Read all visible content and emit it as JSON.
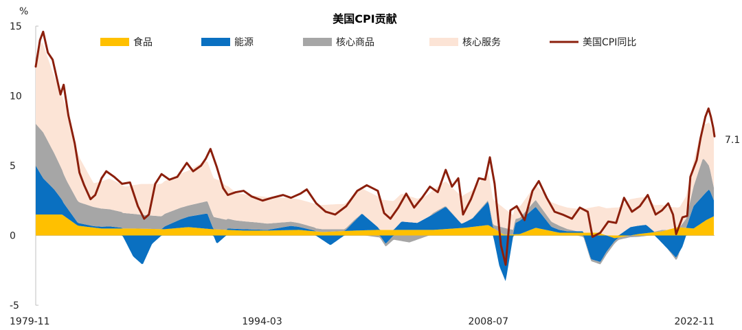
{
  "chart_data": {
    "type": "area",
    "title": "美国CPI贡献",
    "ylabel": "%",
    "ylim": [
      -5,
      15
    ],
    "yticks": [
      "15",
      "10",
      "5",
      "0",
      "-5"
    ],
    "x_tick_labels": [
      "1979-11",
      "1994-03",
      "2008-07",
      "2022-11"
    ],
    "x_range": [
      "1979-11",
      "2022-11"
    ],
    "end_label": "7.1",
    "series": [
      {
        "name": "食品",
        "color": "#ffc000",
        "points": [
          [
            1979.83,
            1.5
          ],
          [
            1980.5,
            1.5
          ],
          [
            1981.5,
            1.5
          ],
          [
            1982.5,
            0.7
          ],
          [
            1984,
            0.5
          ],
          [
            1986,
            0.5
          ],
          [
            1988,
            0.45
          ],
          [
            1989.5,
            0.6
          ],
          [
            1991,
            0.45
          ],
          [
            1993,
            0.35
          ],
          [
            1994.5,
            0.35
          ],
          [
            1996.5,
            0.4
          ],
          [
            1998,
            0.25
          ],
          [
            2000,
            0.35
          ],
          [
            2001.5,
            0.4
          ],
          [
            2003.5,
            0.4
          ],
          [
            2005,
            0.4
          ],
          [
            2007,
            0.55
          ],
          [
            2008.5,
            0.75
          ],
          [
            2009.5,
            0.05
          ],
          [
            2010.5,
            0.1
          ],
          [
            2011.5,
            0.55
          ],
          [
            2013,
            0.2
          ],
          [
            2015.5,
            0.2
          ],
          [
            2016.5,
            -0.2
          ],
          [
            2018,
            0.1
          ],
          [
            2019.5,
            0.3
          ],
          [
            2020.5,
            0.6
          ],
          [
            2021.5,
            0.5
          ],
          [
            2022.3,
            1.1
          ],
          [
            2022.83,
            1.4
          ]
        ]
      },
      {
        "name": "能源",
        "color": "#0a70c1",
        "points": [
          [
            1979.83,
            3.5
          ],
          [
            1980.3,
            2.6
          ],
          [
            1981,
            1.8
          ],
          [
            1981.6,
            0.9
          ],
          [
            1982.5,
            0.2
          ],
          [
            1983.5,
            0.1
          ],
          [
            1984.5,
            0.15
          ],
          [
            1985.3,
            0.05
          ],
          [
            1986,
            -1.5
          ],
          [
            1986.6,
            -2.1
          ],
          [
            1987.2,
            -0.6
          ],
          [
            1988,
            0.2
          ],
          [
            1989,
            0.6
          ],
          [
            1990.7,
            1.1
          ],
          [
            1991.3,
            -0.6
          ],
          [
            1992,
            0.1
          ],
          [
            1993,
            0.1
          ],
          [
            1994.5,
            0.05
          ],
          [
            1996,
            0.3
          ],
          [
            1997.5,
            0.05
          ],
          [
            1998.5,
            -0.7
          ],
          [
            1999.5,
            0.1
          ],
          [
            2000.5,
            1.2
          ],
          [
            2001.5,
            0.2
          ],
          [
            2002,
            -0.6
          ],
          [
            2003,
            0.6
          ],
          [
            2004,
            0.5
          ],
          [
            2005.8,
            1.6
          ],
          [
            2006.8,
            0.3
          ],
          [
            2007.5,
            0.6
          ],
          [
            2008.5,
            1.7
          ],
          [
            2009.2,
            -2.2
          ],
          [
            2009.6,
            -3.3
          ],
          [
            2010.2,
            0.8
          ],
          [
            2011.5,
            1.5
          ],
          [
            2012.5,
            0.3
          ],
          [
            2013.5,
            0.1
          ],
          [
            2014.5,
            0.1
          ],
          [
            2015,
            -1.7
          ],
          [
            2015.6,
            -1.9
          ],
          [
            2016.5,
            -0.2
          ],
          [
            2017.5,
            0.6
          ],
          [
            2018.5,
            0.6
          ],
          [
            2019.3,
            -0.3
          ],
          [
            2020.4,
            -1.6
          ],
          [
            2020.8,
            -0.8
          ],
          [
            2021.5,
            1.6
          ],
          [
            2022.5,
            2.1
          ],
          [
            2022.83,
            1.0
          ]
        ]
      },
      {
        "name": "核心商品",
        "color": "#a6a6a6",
        "points": [
          [
            1979.83,
            3.0
          ],
          [
            1980.3,
            3.3
          ],
          [
            1981,
            2.6
          ],
          [
            1981.8,
            1.9
          ],
          [
            1982.6,
            1.5
          ],
          [
            1984,
            1.3
          ],
          [
            1985.5,
            1.1
          ],
          [
            1986.5,
            1.0
          ],
          [
            1988,
            0.9
          ],
          [
            1989.5,
            0.8
          ],
          [
            1991,
            0.9
          ],
          [
            1992.5,
            0.6
          ],
          [
            1994,
            0.5
          ],
          [
            1996,
            0.3
          ],
          [
            1998,
            0.2
          ],
          [
            2000,
            0.1
          ],
          [
            2002,
            -0.2
          ],
          [
            2003.5,
            -0.5
          ],
          [
            2005,
            0.1
          ],
          [
            2007,
            0.0
          ],
          [
            2008.5,
            0.1
          ],
          [
            2009.5,
            0.5
          ],
          [
            2010.5,
            0.2
          ],
          [
            2011.5,
            0.5
          ],
          [
            2013,
            0.3
          ],
          [
            2014.5,
            -0.1
          ],
          [
            2016,
            -0.2
          ],
          [
            2018,
            -0.1
          ],
          [
            2019.5,
            0.1
          ],
          [
            2020.5,
            -0.2
          ],
          [
            2021.5,
            1.4
          ],
          [
            2022.1,
            2.7
          ],
          [
            2022.83,
            0.8
          ]
        ]
      },
      {
        "name": "核心服务",
        "color": "#fce4d6",
        "points": [
          [
            1979.83,
            4.2
          ],
          [
            1980.2,
            6.4
          ],
          [
            1981,
            5.5
          ],
          [
            1981.8,
            5.2
          ],
          [
            1982.6,
            3.2
          ],
          [
            1983.5,
            1.7
          ],
          [
            1984.5,
            2.2
          ],
          [
            1985.5,
            1.9
          ],
          [
            1986.5,
            2.2
          ],
          [
            1987.5,
            2.3
          ],
          [
            1988.5,
            2.4
          ],
          [
            1989.5,
            2.5
          ],
          [
            1990.5,
            2.9
          ],
          [
            1991.5,
            2.7
          ],
          [
            1992.5,
            2.0
          ],
          [
            1993.5,
            1.9
          ],
          [
            1994.5,
            1.9
          ],
          [
            1996,
            1.7
          ],
          [
            1997.5,
            1.7
          ],
          [
            1999,
            1.8
          ],
          [
            2000.5,
            1.8
          ],
          [
            2001.5,
            2.2
          ],
          [
            2003,
            2.0
          ],
          [
            2004.5,
            1.6
          ],
          [
            2006,
            1.8
          ],
          [
            2007,
            2.0
          ],
          [
            2008.5,
            2.0
          ],
          [
            2009.5,
            1.4
          ],
          [
            2010.5,
            0.8
          ],
          [
            2011.5,
            1.1
          ],
          [
            2012.5,
            1.4
          ],
          [
            2014,
            1.6
          ],
          [
            2015.5,
            1.9
          ],
          [
            2016.5,
            2.0
          ],
          [
            2017.5,
            2.0
          ],
          [
            2018.5,
            2.0
          ],
          [
            2019.5,
            1.8
          ],
          [
            2020.5,
            1.4
          ],
          [
            2021.5,
            1.8
          ],
          [
            2022.3,
            2.7
          ],
          [
            2022.83,
            3.9
          ]
        ]
      }
    ],
    "line_series": {
      "name": "美国CPI同比",
      "color": "#8b1f0c",
      "points": [
        [
          1979.83,
          12.1
        ],
        [
          1980.1,
          14.0
        ],
        [
          1980.3,
          14.6
        ],
        [
          1980.6,
          13.1
        ],
        [
          1980.9,
          12.6
        ],
        [
          1981.2,
          11.1
        ],
        [
          1981.4,
          10.1
        ],
        [
          1981.6,
          10.8
        ],
        [
          1981.9,
          8.6
        ],
        [
          1982.3,
          6.6
        ],
        [
          1982.6,
          4.5
        ],
        [
          1982.9,
          3.6
        ],
        [
          1983.3,
          2.6
        ],
        [
          1983.6,
          2.9
        ],
        [
          1984.0,
          4.1
        ],
        [
          1984.3,
          4.6
        ],
        [
          1984.8,
          4.2
        ],
        [
          1985.3,
          3.7
        ],
        [
          1985.8,
          3.8
        ],
        [
          1986.3,
          2.1
        ],
        [
          1986.7,
          1.2
        ],
        [
          1987.0,
          1.5
        ],
        [
          1987.4,
          3.7
        ],
        [
          1987.8,
          4.4
        ],
        [
          1988.3,
          4.0
        ],
        [
          1988.8,
          4.2
        ],
        [
          1989.4,
          5.2
        ],
        [
          1989.8,
          4.6
        ],
        [
          1990.3,
          5.0
        ],
        [
          1990.6,
          5.5
        ],
        [
          1990.9,
          6.2
        ],
        [
          1991.3,
          4.9
        ],
        [
          1991.7,
          3.4
        ],
        [
          1992.0,
          2.9
        ],
        [
          1992.5,
          3.1
        ],
        [
          1993.0,
          3.2
        ],
        [
          1993.5,
          2.8
        ],
        [
          1994.2,
          2.5
        ],
        [
          1994.8,
          2.7
        ],
        [
          1995.5,
          2.9
        ],
        [
          1996.0,
          2.7
        ],
        [
          1996.6,
          3.0
        ],
        [
          1997.0,
          3.3
        ],
        [
          1997.6,
          2.3
        ],
        [
          1998.2,
          1.7
        ],
        [
          1998.8,
          1.5
        ],
        [
          1999.5,
          2.1
        ],
        [
          2000.2,
          3.2
        ],
        [
          2000.8,
          3.6
        ],
        [
          2001.5,
          3.2
        ],
        [
          2001.9,
          1.6
        ],
        [
          2002.3,
          1.2
        ],
        [
          2002.8,
          2.0
        ],
        [
          2003.3,
          3.0
        ],
        [
          2003.8,
          2.0
        ],
        [
          2004.3,
          2.7
        ],
        [
          2004.8,
          3.5
        ],
        [
          2005.3,
          3.1
        ],
        [
          2005.8,
          4.7
        ],
        [
          2006.2,
          3.5
        ],
        [
          2006.6,
          4.1
        ],
        [
          2006.9,
          1.5
        ],
        [
          2007.4,
          2.6
        ],
        [
          2007.9,
          4.1
        ],
        [
          2008.3,
          4.0
        ],
        [
          2008.6,
          5.6
        ],
        [
          2008.9,
          3.7
        ],
        [
          2009.3,
          -0.7
        ],
        [
          2009.6,
          -2.1
        ],
        [
          2009.9,
          1.8
        ],
        [
          2010.3,
          2.1
        ],
        [
          2010.8,
          1.1
        ],
        [
          2011.3,
          3.2
        ],
        [
          2011.7,
          3.9
        ],
        [
          2012.2,
          2.7
        ],
        [
          2012.7,
          1.7
        ],
        [
          2013.2,
          1.5
        ],
        [
          2013.8,
          1.2
        ],
        [
          2014.3,
          2.0
        ],
        [
          2014.8,
          1.7
        ],
        [
          2015.1,
          -0.1
        ],
        [
          2015.6,
          0.2
        ],
        [
          2016.1,
          1.0
        ],
        [
          2016.6,
          0.9
        ],
        [
          2017.1,
          2.7
        ],
        [
          2017.6,
          1.7
        ],
        [
          2018.1,
          2.1
        ],
        [
          2018.6,
          2.9
        ],
        [
          2019.1,
          1.5
        ],
        [
          2019.5,
          1.8
        ],
        [
          2019.9,
          2.3
        ],
        [
          2020.2,
          1.5
        ],
        [
          2020.4,
          0.1
        ],
        [
          2020.8,
          1.3
        ],
        [
          2021.1,
          1.4
        ],
        [
          2021.3,
          4.2
        ],
        [
          2021.7,
          5.4
        ],
        [
          2021.95,
          7.0
        ],
        [
          2022.25,
          8.5
        ],
        [
          2022.45,
          9.1
        ],
        [
          2022.6,
          8.5
        ],
        [
          2022.75,
          7.7
        ],
        [
          2022.83,
          7.1
        ]
      ]
    },
    "legend_position": "top"
  }
}
